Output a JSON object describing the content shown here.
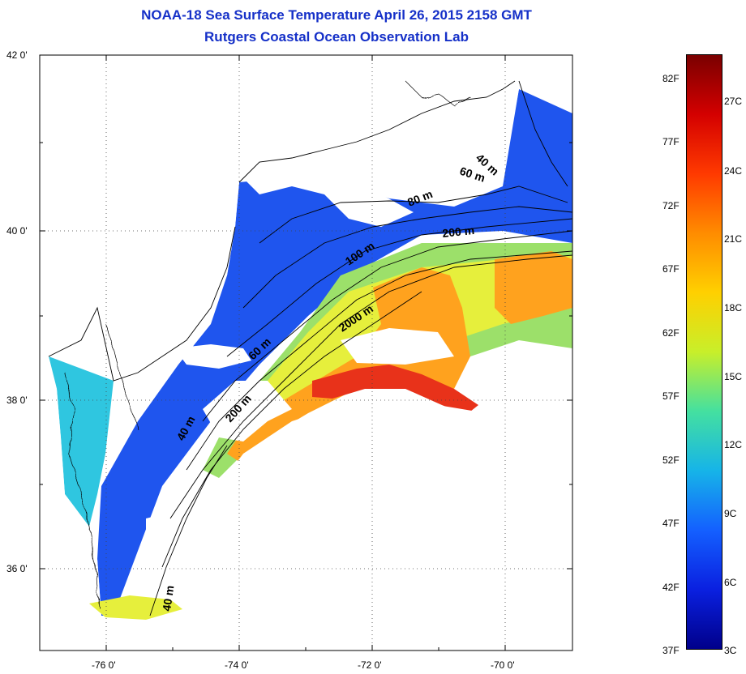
{
  "title": {
    "line1": "NOAA-18 Sea Surface Temperature April 26, 2015 2158 GMT",
    "line2": "Rutgers Coastal Ocean Observation Lab"
  },
  "axes": {
    "lat_labels": [
      "42 0'",
      "40 0'",
      "38 0'",
      "36 0'"
    ],
    "lon_labels": [
      "-76 0'",
      "-74 0'",
      "-72 0'",
      "-70 0'"
    ]
  },
  "contours": [
    "40 m",
    "60 m",
    "80 m",
    "200 m",
    "100 m",
    "2000 m",
    "60 m",
    "200 m",
    "40 m",
    "40 m"
  ],
  "colorbar": {
    "fahrenheit": [
      "82F",
      "77F",
      "72F",
      "67F",
      "62F",
      "57F",
      "52F",
      "47F",
      "42F",
      "37F"
    ],
    "celsius": [
      "27C",
      "24C",
      "21C",
      "18C",
      "15C",
      "12C",
      "9C",
      "6C",
      "3C"
    ],
    "colors": [
      "#7a0000",
      "#d40000",
      "#ff3a00",
      "#ff8c00",
      "#ffd000",
      "#c8ef2a",
      "#44e0a0",
      "#16b4e8",
      "#1460ff",
      "#0a20e0",
      "#00008a"
    ]
  },
  "map_colors": {
    "land": "#ffffff",
    "cold_shelf": "#1f55ee",
    "shelf_mid": "#2a80f0",
    "coast_cyan": "#2fc6e0",
    "slope_green": "#9ce06a",
    "slope_yellow": "#e6ef3c",
    "gulf_orange": "#ffa21e",
    "gulf_red": "#e8321a",
    "cloud": "#ffffff"
  }
}
